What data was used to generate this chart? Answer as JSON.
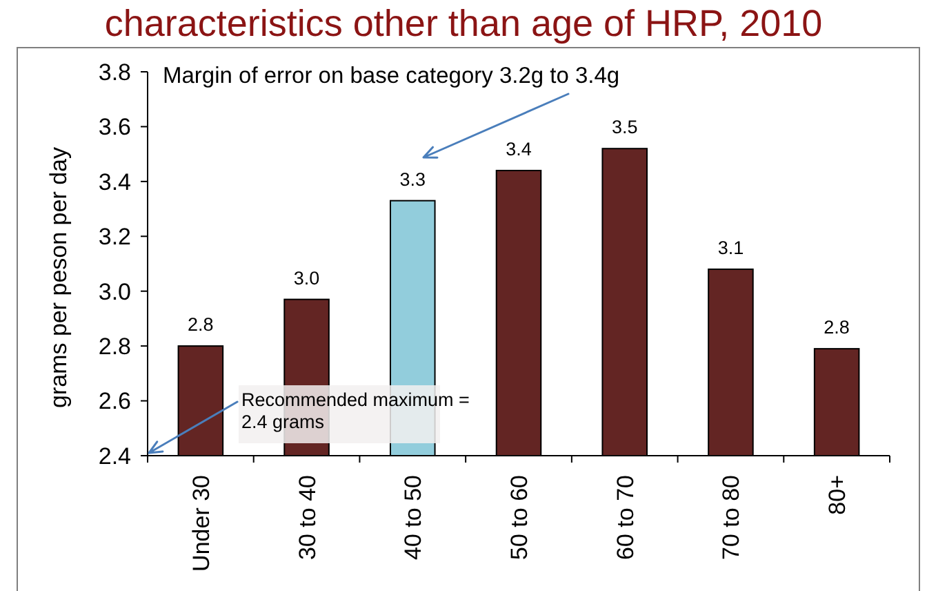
{
  "chart_data": {
    "type": "bar",
    "title": "characteristics other than age of HRP, 2010",
    "ylabel": "grams per peson per day",
    "categories": [
      "Under 30",
      "30 to 40",
      "40 to 50",
      "50 to 60",
      "60 to 70",
      "70 to 80",
      "80+"
    ],
    "values": [
      2.8,
      2.97,
      3.33,
      3.44,
      3.52,
      3.08,
      2.79
    ],
    "colors": [
      "#632523",
      "#632523",
      "#92cddc",
      "#632523",
      "#632523",
      "#632523",
      "#632523"
    ],
    "value_labels": [
      "2.8",
      "3.0",
      "3.3",
      "3.4",
      "3.5",
      "3.1",
      "2.8"
    ],
    "ylim": [
      2.4,
      3.8
    ],
    "yticks": [
      2.4,
      2.6,
      2.8,
      {
        "value": 3,
        "label": "3.0"
      },
      3.2,
      3.4,
      3.6,
      3.8
    ],
    "annotations": [
      "Margin of error on base category 3.2g to 3.4g",
      "Recommended maximum = 2.4 grams"
    ]
  }
}
